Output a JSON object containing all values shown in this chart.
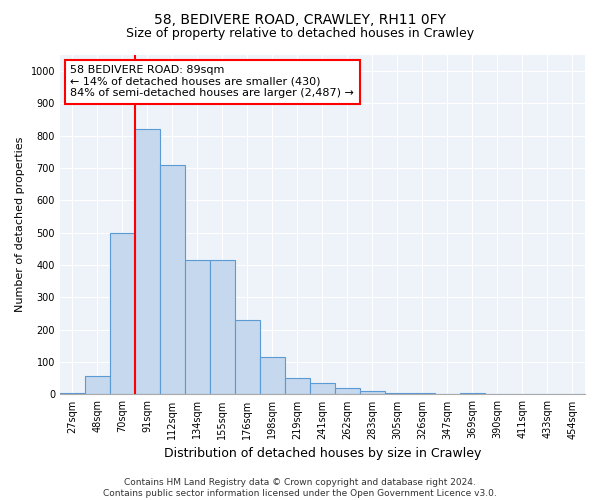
{
  "title1": "58, BEDIVERE ROAD, CRAWLEY, RH11 0FY",
  "title2": "Size of property relative to detached houses in Crawley",
  "xlabel": "Distribution of detached houses by size in Crawley",
  "ylabel": "Number of detached properties",
  "bin_labels": [
    "27sqm",
    "48sqm",
    "70sqm",
    "91sqm",
    "112sqm",
    "134sqm",
    "155sqm",
    "176sqm",
    "198sqm",
    "219sqm",
    "241sqm",
    "262sqm",
    "283sqm",
    "305sqm",
    "326sqm",
    "347sqm",
    "369sqm",
    "390sqm",
    "411sqm",
    "433sqm",
    "454sqm"
  ],
  "bar_values": [
    5,
    57,
    500,
    820,
    710,
    415,
    415,
    230,
    115,
    52,
    35,
    20,
    10,
    5,
    5,
    0,
    5,
    0,
    0,
    0,
    0
  ],
  "bar_color": "#c5d8ed",
  "bar_edge_color": "#5b9bd5",
  "property_line_bin": 3,
  "annotation_line1": "58 BEDIVERE ROAD: 89sqm",
  "annotation_line2": "← 14% of detached houses are smaller (430)",
  "annotation_line3": "84% of semi-detached houses are larger (2,487) →",
  "ylim": [
    0,
    1050
  ],
  "yticks": [
    0,
    100,
    200,
    300,
    400,
    500,
    600,
    700,
    800,
    900,
    1000
  ],
  "footer_line1": "Contains HM Land Registry data © Crown copyright and database right 2024.",
  "footer_line2": "Contains public sector information licensed under the Open Government Licence v3.0.",
  "background_color": "#eef2f9",
  "grid_color": "#ffffff",
  "title1_fontsize": 10,
  "title2_fontsize": 9,
  "xlabel_fontsize": 9,
  "ylabel_fontsize": 8,
  "tick_fontsize": 7,
  "footer_fontsize": 6.5,
  "annotation_fontsize": 8
}
